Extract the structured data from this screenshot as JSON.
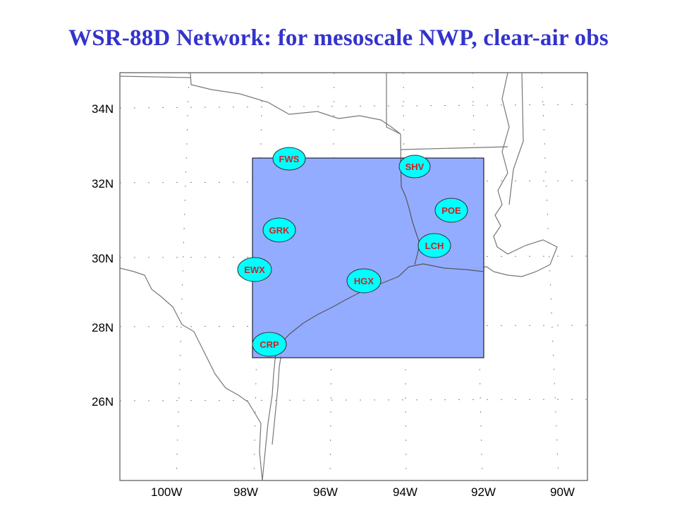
{
  "title": "WSR-88D Network: for mesoscale NWP, clear-air obs",
  "map": {
    "lat_labels": [
      "34N",
      "32N",
      "30N",
      "28N",
      "26N"
    ],
    "lon_labels": [
      "100W",
      "98W",
      "96W",
      "94W",
      "92W",
      "90W"
    ],
    "domain_box_color": "#8ea8ff",
    "station_fill": "#00ffff",
    "station_text_color": "#cc2222"
  },
  "stations": [
    {
      "id": "FWS",
      "lat": 32.6,
      "lon": -97.3
    },
    {
      "id": "SHV",
      "lat": 32.45,
      "lon": -93.85
    },
    {
      "id": "POE",
      "lat": 31.15,
      "lon": -92.95
    },
    {
      "id": "GRK",
      "lat": 30.7,
      "lon": -97.4
    },
    {
      "id": "LCH",
      "lat": 30.1,
      "lon": -93.2
    },
    {
      "id": "EWX",
      "lat": 29.7,
      "lon": -98.1
    },
    {
      "id": "HGX",
      "lat": 29.45,
      "lon": -95.1
    },
    {
      "id": "CRP",
      "lat": 27.8,
      "lon": -97.5
    }
  ]
}
